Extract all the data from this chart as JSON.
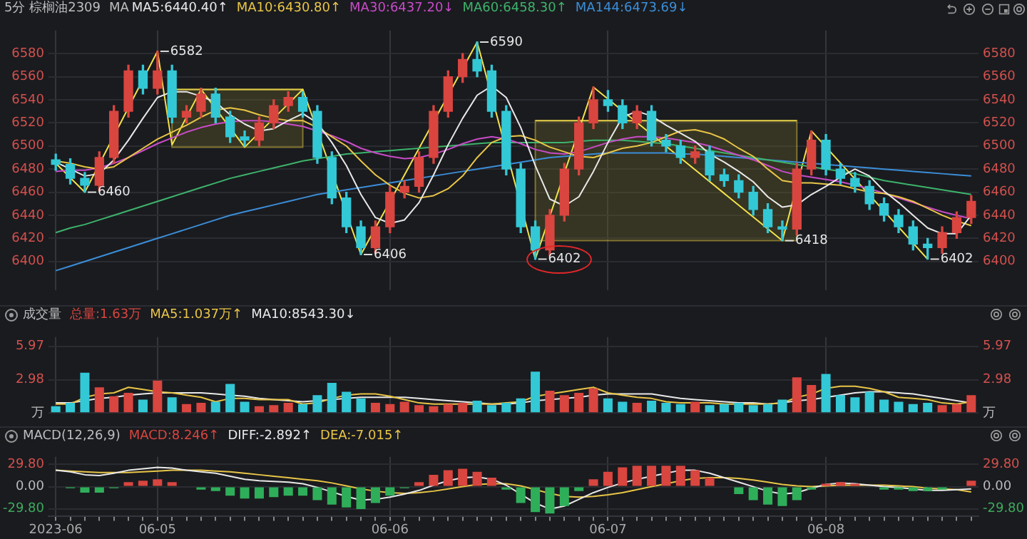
{
  "chart_data": [
    {
      "type": "candlestick",
      "title": "5分 棕榈油2309",
      "legend_title": "MA",
      "legend": "top left",
      "grid": true,
      "tick_labels": "y",
      "categories": [
        null,
        null,
        null,
        null,
        null,
        null,
        null,
        null,
        null,
        null,
        null,
        null,
        null,
        null,
        null,
        null,
        null,
        null,
        null,
        null,
        null,
        null,
        null,
        null,
        null,
        null,
        null,
        null,
        null,
        null,
        null,
        null,
        null,
        null,
        null,
        null,
        null,
        null,
        null,
        null,
        null,
        null,
        null,
        null,
        null,
        null,
        null,
        null,
        null,
        null,
        null,
        null,
        null,
        null,
        null,
        null,
        null,
        null,
        null,
        null,
        null,
        null,
        null,
        null
      ],
      "ylim": [
        6375,
        6600
      ],
      "yticks": [
        6400,
        6420,
        6440,
        6460,
        6480,
        6500,
        6520,
        6540,
        6560,
        6580
      ],
      "y2lim": [
        6375,
        6600
      ],
      "y2ticks": [
        6400,
        6420,
        6440,
        6460,
        6480,
        6500,
        6520,
        6540,
        6560,
        6580
      ],
      "ohlc": [
        [
          6488,
          6493,
          6479,
          6484
        ],
        [
          6484,
          6489,
          6467,
          6472
        ],
        [
          6472,
          6477,
          6460,
          6466
        ],
        [
          6466,
          6495,
          6461,
          6490
        ],
        [
          6490,
          6535,
          6485,
          6530
        ],
        [
          6530,
          6570,
          6525,
          6565
        ],
        [
          6565,
          6570,
          6545,
          6550
        ],
        [
          6550,
          6582,
          6545,
          6565
        ],
        [
          6565,
          6570,
          6520,
          6525
        ],
        [
          6525,
          6535,
          6520,
          6530
        ],
        [
          6530,
          6550,
          6525,
          6545
        ],
        [
          6545,
          6550,
          6520,
          6525
        ],
        [
          6525,
          6530,
          6503,
          6508
        ],
        [
          6508,
          6513,
          6500,
          6505
        ],
        [
          6505,
          6525,
          6500,
          6520
        ],
        [
          6520,
          6540,
          6515,
          6535
        ],
        [
          6535,
          6547,
          6530,
          6542
        ],
        [
          6542,
          6547,
          6525,
          6530
        ],
        [
          6530,
          6535,
          6485,
          6490
        ],
        [
          6490,
          6495,
          6450,
          6455
        ],
        [
          6455,
          6460,
          6425,
          6430
        ],
        [
          6430,
          6435,
          6406,
          6412
        ],
        [
          6412,
          6435,
          6407,
          6430
        ],
        [
          6430,
          6465,
          6425,
          6460
        ],
        [
          6460,
          6470,
          6455,
          6465
        ],
        [
          6465,
          6495,
          6460,
          6490
        ],
        [
          6490,
          6535,
          6485,
          6530
        ],
        [
          6530,
          6565,
          6525,
          6560
        ],
        [
          6560,
          6580,
          6555,
          6575
        ],
        [
          6575,
          6590,
          6560,
          6565
        ],
        [
          6565,
          6570,
          6525,
          6530
        ],
        [
          6530,
          6535,
          6475,
          6480
        ],
        [
          6480,
          6485,
          6425,
          6430
        ],
        [
          6430,
          6435,
          6402,
          6410
        ],
        [
          6410,
          6445,
          6405,
          6440
        ],
        [
          6440,
          6485,
          6435,
          6480
        ],
        [
          6480,
          6525,
          6475,
          6520
        ],
        [
          6520,
          6551,
          6515,
          6540
        ],
        [
          6540,
          6548,
          6530,
          6535
        ],
        [
          6535,
          6540,
          6515,
          6520
        ],
        [
          6520,
          6535,
          6515,
          6530
        ],
        [
          6530,
          6535,
          6500,
          6505
        ],
        [
          6505,
          6510,
          6495,
          6500
        ],
        [
          6500,
          6505,
          6485,
          6490
        ],
        [
          6490,
          6500,
          6485,
          6495
        ],
        [
          6495,
          6500,
          6470,
          6475
        ],
        [
          6475,
          6480,
          6465,
          6470
        ],
        [
          6470,
          6475,
          6455,
          6460
        ],
        [
          6460,
          6465,
          6440,
          6445
        ],
        [
          6445,
          6450,
          6425,
          6430
        ],
        [
          6430,
          6435,
          6418,
          6428
        ],
        [
          6428,
          6485,
          6423,
          6480
        ],
        [
          6480,
          6513,
          6475,
          6505
        ],
        [
          6505,
          6510,
          6475,
          6480
        ],
        [
          6480,
          6485,
          6467,
          6472
        ],
        [
          6472,
          6477,
          6460,
          6465
        ],
        [
          6465,
          6470,
          6445,
          6450
        ],
        [
          6450,
          6455,
          6435,
          6440
        ],
        [
          6440,
          6445,
          6425,
          6430
        ],
        [
          6430,
          6435,
          6410,
          6415
        ],
        [
          6415,
          6420,
          6402,
          6412
        ],
        [
          6412,
          6430,
          6407,
          6425
        ],
        [
          6425,
          6443,
          6420,
          6438
        ],
        [
          6438,
          6457,
          6433,
          6452
        ]
      ],
      "colors": [
        "#33c8d6",
        "#33c8d6",
        "#33c8d6",
        "#d9453f",
        "#d9453f",
        "#d9453f",
        "#33c8d6",
        "#d9453f",
        "#33c8d6",
        "#d9453f",
        "#d9453f",
        "#33c8d6",
        "#33c8d6",
        "#33c8d6",
        "#d9453f",
        "#d9453f",
        "#d9453f",
        "#33c8d6",
        "#33c8d6",
        "#33c8d6",
        "#33c8d6",
        "#33c8d6",
        "#d9453f",
        "#d9453f",
        "#d9453f",
        "#d9453f",
        "#d9453f",
        "#d9453f",
        "#d9453f",
        "#33c8d6",
        "#33c8d6",
        "#33c8d6",
        "#33c8d6",
        "#33c8d6",
        "#d9453f",
        "#d9453f",
        "#d9453f",
        "#d9453f",
        "#33c8d6",
        "#33c8d6",
        "#d9453f",
        "#33c8d6",
        "#33c8d6",
        "#33c8d6",
        "#d9453f",
        "#33c8d6",
        "#33c8d6",
        "#33c8d6",
        "#33c8d6",
        "#33c8d6",
        "#33c8d6",
        "#d9453f",
        "#d9453f",
        "#33c8d6",
        "#33c8d6",
        "#33c8d6",
        "#33c8d6",
        "#33c8d6",
        "#33c8d6",
        "#33c8d6",
        "#33c8d6",
        "#d9453f",
        "#d9453f",
        "#d9453f"
      ],
      "series": [
        {
          "name": "MA5:6440.40↑",
          "type": "line",
          "color": "#e8e8e8",
          "values": [
            6486,
            6480,
            6474,
            6476,
            6488,
            6505,
            6524,
            6542,
            6547,
            6547,
            6543,
            6538,
            6527,
            6519,
            6513,
            6515,
            6522,
            6528,
            6520,
            6503,
            6483,
            6458,
            6438,
            6433,
            6436,
            6451,
            6475,
            6501,
            6524,
            6544,
            6552,
            6542,
            6516,
            6483,
            6454,
            6448,
            6456,
            6478,
            6503,
            6525,
            6530,
            6526,
            6518,
            6511,
            6504,
            6493,
            6486,
            6478,
            6469,
            6456,
            6447,
            6449,
            6458,
            6465,
            6473,
            6480,
            6474,
            6461,
            6451,
            6440,
            6429,
            6424,
            6424,
            6440
          ]
        },
        {
          "name": "MA10:6430.80↑",
          "type": "line",
          "color": "#e8c547",
          "values": [
            6487,
            6485,
            6482,
            6480,
            6482,
            6490,
            6498,
            6506,
            6512,
            6518,
            6525,
            6531,
            6533,
            6531,
            6527,
            6524,
            6522,
            6522,
            6516,
            6508,
            6500,
            6487,
            6475,
            6466,
            6459,
            6455,
            6457,
            6463,
            6474,
            6490,
            6503,
            6508,
            6509,
            6505,
            6499,
            6495,
            6491,
            6490,
            6494,
            6498,
            6500,
            6503,
            6508,
            6513,
            6514,
            6511,
            6506,
            6498,
            6491,
            6480,
            6470,
            6468,
            6468,
            6467,
            6466,
            6463,
            6460,
            6459,
            6456,
            6452,
            6446,
            6440,
            6435,
            6431
          ]
        },
        {
          "name": "MA30:6437.20↓",
          "type": "line",
          "color": "#c84bc8",
          "values": [
            6478,
            6479,
            6479,
            6481,
            6485,
            6490,
            6496,
            6502,
            6507,
            6512,
            6516,
            6519,
            6521,
            6522,
            6522,
            6521,
            6519,
            6517,
            6513,
            6509,
            6504,
            6498,
            6494,
            6491,
            6489,
            6490,
            6493,
            6497,
            6502,
            6506,
            6508,
            6506,
            6502,
            6497,
            6494,
            6493,
            6495,
            6499,
            6503,
            6506,
            6508,
            6508,
            6507,
            6505,
            6503,
            6500,
            6496,
            6492,
            6488,
            6483,
            6478,
            6475,
            6473,
            6471,
            6469,
            6466,
            6463,
            6459,
            6455,
            6451,
            6447,
            6443,
            6440,
            6437
          ]
        },
        {
          "name": "MA60:6458.30↑",
          "type": "line",
          "color": "#3db36b",
          "values": [
            6425,
            6429,
            6432,
            6436,
            6440,
            6444,
            6448,
            6452,
            6456,
            6460,
            6464,
            6468,
            6472,
            6475,
            6478,
            6481,
            6484,
            6487,
            6489,
            6491,
            6493,
            6494,
            6495,
            6496,
            6497,
            6498,
            6499,
            6500,
            6501,
            6502,
            6503,
            6503,
            6503,
            6503,
            6503,
            6503,
            6504,
            6505,
            6505,
            6505,
            6504,
            6503,
            6502,
            6500,
            6498,
            6496,
            6494,
            6492,
            6490,
            6488,
            6486,
            6484,
            6482,
            6480,
            6478,
            6476,
            6473,
            6470,
            6468,
            6466,
            6464,
            6462,
            6460,
            6458
          ]
        },
        {
          "name": "MA144:6473.69↓",
          "type": "line",
          "color": "#3b8ed8",
          "values": [
            6392,
            6396,
            6400,
            6404,
            6408,
            6412,
            6416,
            6420,
            6424,
            6428,
            6432,
            6436,
            6440,
            6443,
            6446,
            6449,
            6452,
            6455,
            6458,
            6460,
            6462,
            6464,
            6466,
            6468,
            6470,
            6472,
            6474,
            6476,
            6478,
            6480,
            6482,
            6484,
            6486,
            6488,
            6490,
            6491,
            6492,
            6493,
            6494,
            6494,
            6494,
            6494,
            6494,
            6493,
            6493,
            6492,
            6491,
            6490,
            6489,
            6488,
            6487,
            6486,
            6485,
            6484,
            6483,
            6482,
            6481,
            6480,
            6479,
            6478,
            6477,
            6476,
            6475,
            6474
          ]
        },
        {
          "type": "line",
          "color": "#f2e24a",
          "values": [
            6485,
            null,
            6460,
            null,
            null,
            null,
            null,
            6582,
            6501,
            null,
            6549,
            null,
            null,
            6499,
            null,
            null,
            null,
            6549,
            null,
            null,
            null,
            6406,
            null,
            null,
            null,
            null,
            null,
            null,
            null,
            6590,
            null,
            null,
            null,
            6402,
            null,
            null,
            null,
            6551,
            null,
            null,
            null,
            null,
            null,
            null,
            null,
            null,
            null,
            null,
            null,
            null,
            6418,
            null,
            6513,
            null,
            null,
            null,
            null,
            null,
            null,
            null,
            6402,
            null,
            null,
            null
          ],
          "value_labels": [
            null,
            null,
            "6460",
            null,
            null,
            null,
            null,
            "6582",
            null,
            null,
            null,
            null,
            null,
            null,
            null,
            null,
            null,
            null,
            null,
            null,
            null,
            "6406",
            null,
            null,
            null,
            null,
            null,
            null,
            null,
            "6590",
            null,
            null,
            null,
            "6402",
            null,
            null,
            null,
            null,
            null,
            null,
            null,
            null,
            null,
            null,
            null,
            null,
            null,
            null,
            null,
            null,
            "6418",
            null,
            null,
            null,
            null,
            null,
            null,
            null,
            null,
            null,
            "6402",
            null,
            null,
            null
          ]
        },
        {
          "type": "line",
          "color": "#e0cc48",
          "values": [
            null,
            null,
            null,
            null,
            null,
            null,
            null,
            null,
            6549,
            6549,
            6549,
            6549,
            6549,
            6549,
            6549,
            6549,
            6549,
            6549,
            null,
            null,
            null,
            null,
            null,
            null,
            null,
            null,
            null,
            null,
            null,
            null,
            null,
            null,
            null,
            6522,
            6522,
            6522,
            6522,
            6522,
            6522,
            6522,
            6522,
            6522,
            6522,
            6522,
            6522,
            6522,
            6522,
            6522,
            6522,
            6522,
            6522,
            6522,
            null,
            null,
            null,
            null,
            null,
            null,
            null,
            null,
            null,
            null,
            null,
            null
          ],
          "upper": [
            null,
            null,
            null,
            null,
            null,
            null,
            null,
            null,
            6549,
            6549,
            6549,
            6549,
            6549,
            6549,
            6549,
            6549,
            6549,
            6549,
            null,
            null,
            null,
            null,
            null,
            null,
            null,
            null,
            null,
            null,
            null,
            null,
            null,
            null,
            null,
            6522,
            6522,
            6522,
            6522,
            6522,
            6522,
            6522,
            6522,
            6522,
            6522,
            6522,
            6522,
            6522,
            6522,
            6522,
            6522,
            6522,
            6522,
            6522,
            null,
            null,
            null,
            null,
            null,
            null,
            null,
            null,
            null,
            null,
            null,
            null
          ],
          "lower": [
            null,
            null,
            null,
            null,
            null,
            null,
            null,
            null,
            6499,
            6499,
            6499,
            6499,
            6499,
            6499,
            6499,
            6499,
            6499,
            6499,
            null,
            null,
            null,
            null,
            null,
            null,
            null,
            null,
            null,
            null,
            null,
            null,
            null,
            null,
            null,
            6418,
            6418,
            6418,
            6418,
            6418,
            6418,
            6418,
            6418,
            6418,
            6418,
            6418,
            6418,
            6418,
            6418,
            6418,
            6418,
            6418,
            6418,
            6418,
            null,
            null,
            null,
            null,
            null,
            null,
            null,
            null,
            null,
            null,
            null,
            null
          ]
        }
      ]
    },
    {
      "type": "bar",
      "title": "成交量",
      "legend": "top left",
      "grid": true,
      "tick_labels": "y",
      "categories": [
        null,
        null,
        null,
        null,
        null,
        null,
        null,
        null,
        null,
        null,
        null,
        null,
        null,
        null,
        null,
        null,
        null,
        null,
        null,
        null,
        null,
        null,
        null,
        null,
        null,
        null,
        null,
        null,
        null,
        null,
        null,
        null,
        null,
        null,
        null,
        null,
        null,
        null,
        null,
        null,
        null,
        null,
        null,
        null,
        null,
        null,
        null,
        null,
        null,
        null,
        null,
        null,
        null,
        null,
        null,
        null,
        null,
        null,
        null,
        null,
        null,
        null,
        null,
        null
      ],
      "ylim": [
        0,
        6.8
      ],
      "yticks": [
        {
          "value": 0,
          "label": "万"
        },
        2.98,
        5.97
      ],
      "y2lim": [
        0,
        6.8
      ],
      "y2ticks": [
        {
          "value": 0,
          "label": "万"
        },
        2.98,
        5.97
      ],
      "series": [
        {
          "name": "总量:1.63万",
          "type": "bar",
          "color": "#d9453f",
          "colors": [
            "#33c8d6",
            "#33c8d6",
            "#33c8d6",
            "#d9453f",
            "#d9453f",
            "#d9453f",
            "#33c8d6",
            "#d9453f",
            "#33c8d6",
            "#d9453f",
            "#d9453f",
            "#33c8d6",
            "#33c8d6",
            "#33c8d6",
            "#d9453f",
            "#d9453f",
            "#d9453f",
            "#33c8d6",
            "#33c8d6",
            "#33c8d6",
            "#33c8d6",
            "#33c8d6",
            "#d9453f",
            "#d9453f",
            "#d9453f",
            "#d9453f",
            "#d9453f",
            "#d9453f",
            "#d9453f",
            "#33c8d6",
            "#33c8d6",
            "#33c8d6",
            "#33c8d6",
            "#33c8d6",
            "#d9453f",
            "#d9453f",
            "#d9453f",
            "#d9453f",
            "#33c8d6",
            "#33c8d6",
            "#d9453f",
            "#33c8d6",
            "#33c8d6",
            "#33c8d6",
            "#d9453f",
            "#33c8d6",
            "#33c8d6",
            "#33c8d6",
            "#33c8d6",
            "#33c8d6",
            "#33c8d6",
            "#d9453f",
            "#d9453f",
            "#33c8d6",
            "#33c8d6",
            "#33c8d6",
            "#33c8d6",
            "#33c8d6",
            "#33c8d6",
            "#33c8d6",
            "#33c8d6",
            "#d9453f",
            "#d9453f",
            "#d9453f"
          ],
          "values": [
            0.6,
            0.9,
            3.6,
            2.3,
            1.5,
            1.8,
            1.2,
            2.9,
            1.4,
            0.8,
            0.9,
            1.0,
            2.6,
            1.0,
            0.6,
            0.7,
            0.9,
            0.8,
            1.6,
            2.7,
            1.9,
            1.3,
            0.9,
            0.8,
            1.0,
            0.7,
            0.6,
            0.8,
            0.9,
            1.1,
            0.7,
            0.9,
            1.3,
            3.7,
            2.0,
            1.6,
            1.8,
            2.2,
            1.3,
            1.0,
            0.9,
            1.1,
            0.9,
            0.8,
            1.0,
            0.7,
            0.8,
            0.9,
            0.7,
            0.8,
            1.2,
            3.2,
            2.5,
            3.5,
            1.6,
            1.4,
            1.9,
            1.2,
            1.0,
            0.8,
            0.9,
            0.7,
            0.8,
            1.6
          ]
        },
        {
          "name": "MA5:1.037万↑",
          "type": "line",
          "color": "#e8c547",
          "values": [
            0.8,
            0.8,
            1.4,
            1.7,
            1.8,
            2.3,
            2.1,
            1.9,
            1.8,
            1.6,
            1.4,
            1.0,
            1.3,
            1.3,
            1.2,
            1.2,
            1.2,
            0.8,
            0.9,
            1.3,
            1.6,
            1.7,
            1.7,
            1.5,
            1.2,
            0.9,
            0.8,
            0.8,
            0.8,
            0.8,
            0.8,
            0.9,
            1.0,
            1.5,
            1.7,
            1.9,
            2.1,
            2.3,
            1.8,
            1.6,
            1.4,
            1.3,
            1.0,
            0.9,
            0.9,
            0.9,
            0.8,
            0.8,
            0.8,
            0.8,
            0.9,
            1.4,
            1.7,
            2.2,
            2.4,
            2.4,
            2.2,
            1.9,
            1.4,
            1.3,
            1.2,
            0.9,
            0.8,
            1.0
          ]
        },
        {
          "name": "MA10:8543.30↓",
          "type": "line",
          "color": "#e8e8e8",
          "values": [
            0.9,
            0.9,
            1.1,
            1.3,
            1.4,
            1.6,
            1.7,
            1.8,
            1.8,
            1.8,
            1.8,
            1.7,
            1.6,
            1.5,
            1.3,
            1.2,
            1.1,
            1.0,
            1.1,
            1.2,
            1.3,
            1.4,
            1.4,
            1.4,
            1.4,
            1.3,
            1.2,
            1.1,
            1.0,
            0.9,
            0.8,
            0.8,
            0.9,
            1.1,
            1.2,
            1.3,
            1.4,
            1.6,
            1.7,
            1.7,
            1.7,
            1.7,
            1.5,
            1.3,
            1.2,
            1.1,
            1.0,
            0.9,
            0.9,
            0.8,
            0.9,
            1.1,
            1.2,
            1.4,
            1.6,
            1.8,
            1.9,
            1.9,
            1.8,
            1.7,
            1.5,
            1.3,
            1.1,
            0.9
          ]
        }
      ]
    },
    {
      "type": "bar",
      "title": "MACD(12,26,9)",
      "legend": "top left",
      "grid": true,
      "categories": [
        "2023-06",
        null,
        null,
        null,
        null,
        null,
        null,
        "06-05",
        null,
        null,
        null,
        null,
        null,
        null,
        null,
        null,
        null,
        null,
        null,
        null,
        null,
        null,
        null,
        "06-06",
        null,
        null,
        null,
        null,
        null,
        null,
        null,
        null,
        null,
        null,
        null,
        null,
        null,
        null,
        "06-07",
        null,
        null,
        null,
        null,
        null,
        null,
        null,
        null,
        null,
        null,
        null,
        null,
        null,
        null,
        "06-08",
        null,
        null,
        null,
        null,
        null,
        null,
        null,
        null,
        null,
        null
      ],
      "ylim": [
        -40,
        40
      ],
      "yticks": [
        {
          "value": -29.8,
          "label": "-29.80"
        },
        {
          "value": 0,
          "label": "0.00"
        },
        {
          "value": 29.8,
          "label": "29.80"
        }
      ],
      "y2lim": [
        -40,
        40
      ],
      "y2ticks": [
        {
          "value": -29.8,
          "label": "-29.80"
        },
        {
          "value": 0,
          "label": "0.00"
        },
        {
          "value": 29.8,
          "label": "29.80"
        }
      ],
      "series": [
        {
          "name": "MACD:8.246↑",
          "type": "bar",
          "color": "#d9453f",
          "colors": [
            "#d9453f",
            "#2fae5a",
            "#2fae5a",
            "#2fae5a",
            "#2fae5a",
            "#d9453f",
            "#d9453f",
            "#d9453f",
            "#d9453f",
            "#d9453f",
            "#2fae5a",
            "#2fae5a",
            "#2fae5a",
            "#2fae5a",
            "#2fae5a",
            "#2fae5a",
            "#2fae5a",
            "#2fae5a",
            "#2fae5a",
            "#2fae5a",
            "#2fae5a",
            "#2fae5a",
            "#2fae5a",
            "#2fae5a",
            "#2fae5a",
            "#d9453f",
            "#d9453f",
            "#d9453f",
            "#d9453f",
            "#d9453f",
            "#d9453f",
            "#2fae5a",
            "#2fae5a",
            "#2fae5a",
            "#2fae5a",
            "#2fae5a",
            "#2fae5a",
            "#d9453f",
            "#d9453f",
            "#d9453f",
            "#d9453f",
            "#d9453f",
            "#d9453f",
            "#d9453f",
            "#d9453f",
            "#d9453f",
            "#d9453f",
            "#2fae5a",
            "#2fae5a",
            "#2fae5a",
            "#2fae5a",
            "#2fae5a",
            "#2fae5a",
            "#d9453f",
            "#d9453f",
            "#d9453f",
            "#d9453f",
            "#2fae5a",
            "#2fae5a",
            "#2fae5a",
            "#2fae5a",
            "#2fae5a",
            "#d9453f",
            "#d9453f"
          ],
          "values": [
            0,
            -2,
            -8,
            -8,
            -2,
            6,
            8,
            10,
            6,
            0,
            -4,
            -6,
            -12,
            -16,
            -16,
            -14,
            -12,
            -12,
            -18,
            -24,
            -28,
            -30,
            -22,
            -12,
            -2,
            6,
            16,
            22,
            24,
            20,
            12,
            -4,
            -22,
            -34,
            -36,
            -26,
            -6,
            10,
            20,
            26,
            28,
            28,
            28,
            28,
            22,
            12,
            0,
            -10,
            -18,
            -24,
            -26,
            -18,
            -4,
            4,
            6,
            4,
            0,
            -4,
            -4,
            -6,
            -6,
            -4,
            0,
            8
          ]
        },
        {
          "name": "DIFF:-2.892↑",
          "type": "line",
          "color": "#e8e8e8",
          "values": [
            22,
            20,
            16,
            15,
            18,
            22,
            24,
            26,
            25,
            22,
            20,
            18,
            14,
            10,
            8,
            7,
            6,
            4,
            -1,
            -7,
            -13,
            -18,
            -17,
            -14,
            -10,
            -5,
            2,
            8,
            12,
            13,
            10,
            2,
            -10,
            -22,
            -30,
            -26,
            -17,
            -8,
            -1,
            5,
            10,
            14,
            18,
            22,
            22,
            18,
            12,
            6,
            0,
            -6,
            -10,
            -8,
            -2,
            3,
            5,
            4,
            2,
            0,
            -1,
            -3,
            -5,
            -5,
            -4,
            -3
          ]
        },
        {
          "name": "DEA:-7.015↑",
          "type": "line",
          "color": "#e8c547",
          "values": [
            22,
            21,
            20,
            19,
            19,
            19,
            20,
            21,
            22,
            22,
            22,
            21,
            20,
            18,
            16,
            14,
            12,
            10,
            8,
            5,
            1,
            -3,
            -6,
            -8,
            -9,
            -8,
            -6,
            -3,
            0,
            3,
            4,
            4,
            1,
            -4,
            -9,
            -13,
            -14,
            -13,
            -11,
            -8,
            -4,
            0,
            4,
            8,
            11,
            12,
            12,
            11,
            9,
            6,
            3,
            1,
            0,
            1,
            2,
            2,
            2,
            2,
            1,
            0,
            -2,
            -3,
            -4,
            -7
          ]
        }
      ]
    }
  ]
}
